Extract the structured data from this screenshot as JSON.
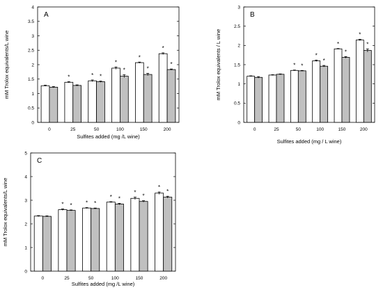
{
  "chart_data": [
    {
      "type": "bar",
      "panel": "A",
      "categories": [
        "0",
        "25",
        "50",
        "100",
        "150",
        "200"
      ],
      "xlabel": "Sulfites added (mg /L wine)",
      "ylabel": "mM Trolox equivalents/L wine",
      "ylim": [
        0,
        4
      ],
      "yticks": [
        "0",
        "0.5",
        "1",
        "1.5",
        "2",
        "2.5",
        "3",
        "3.5",
        "4"
      ],
      "grid": false,
      "series": [
        {
          "color": "#ffffff",
          "values": [
            1.27,
            1.39,
            1.44,
            1.88,
            2.07,
            2.38
          ],
          "errors": [
            0.02,
            0.02,
            0.03,
            0.04,
            0.02,
            0.03
          ],
          "sig": [
            "",
            "*",
            "*",
            "*",
            "*",
            "*"
          ]
        },
        {
          "color": "#c0c0c0",
          "values": [
            1.22,
            1.28,
            1.41,
            1.6,
            1.66,
            1.83
          ],
          "errors": [
            0.02,
            0.02,
            0.02,
            0.05,
            0.04,
            0.02
          ],
          "sig": [
            "",
            "",
            "*",
            "*",
            "*",
            "*"
          ]
        }
      ]
    },
    {
      "type": "bar",
      "panel": "B",
      "categories": [
        "0",
        "25",
        "50",
        "100",
        "150",
        "200"
      ],
      "xlabel": "Sulfites added (mg / L wine)",
      "ylabel": "mM Trolox equivalents / L wine",
      "ylim": [
        0,
        3
      ],
      "yticks": [
        "0",
        "0.5",
        "1",
        "1.5",
        "2",
        "2.5",
        "3"
      ],
      "grid": false,
      "series": [
        {
          "color": "#ffffff",
          "values": [
            1.2,
            1.23,
            1.35,
            1.6,
            1.91,
            2.14
          ],
          "errors": [
            0.01,
            0.01,
            0.01,
            0.02,
            0.01,
            0.02
          ],
          "sig": [
            "",
            "",
            "*",
            "*",
            "*",
            "*"
          ]
        },
        {
          "color": "#c0c0c0",
          "values": [
            1.17,
            1.25,
            1.34,
            1.46,
            1.69,
            1.87
          ],
          "errors": [
            0.02,
            0.01,
            0.01,
            0.02,
            0.02,
            0.04
          ],
          "sig": [
            "",
            "",
            "*",
            "*",
            "*",
            "*"
          ]
        }
      ]
    },
    {
      "type": "bar",
      "panel": "C",
      "categories": [
        "0",
        "25",
        "50",
        "100",
        "150",
        "200"
      ],
      "xlabel": "Sulfites added (mg /L wine)",
      "ylabel": "mM Trolox equivalents/L wine",
      "ylim": [
        0,
        5
      ],
      "yticks": [
        "0",
        "1",
        "2",
        "3",
        "4",
        "5"
      ],
      "grid": false,
      "series": [
        {
          "color": "#ffffff",
          "values": [
            2.33,
            2.6,
            2.67,
            2.92,
            3.08,
            3.3
          ],
          "errors": [
            0.02,
            0.03,
            0.02,
            0.02,
            0.05,
            0.05
          ],
          "sig": [
            "",
            "*",
            "*",
            "*",
            "*",
            "*"
          ]
        },
        {
          "color": "#c0c0c0",
          "values": [
            2.32,
            2.57,
            2.65,
            2.84,
            2.95,
            3.13
          ],
          "errors": [
            0.02,
            0.02,
            0.02,
            0.03,
            0.03,
            0.04
          ],
          "sig": [
            "",
            "*",
            "*",
            "*",
            "*",
            "*"
          ]
        }
      ]
    }
  ]
}
